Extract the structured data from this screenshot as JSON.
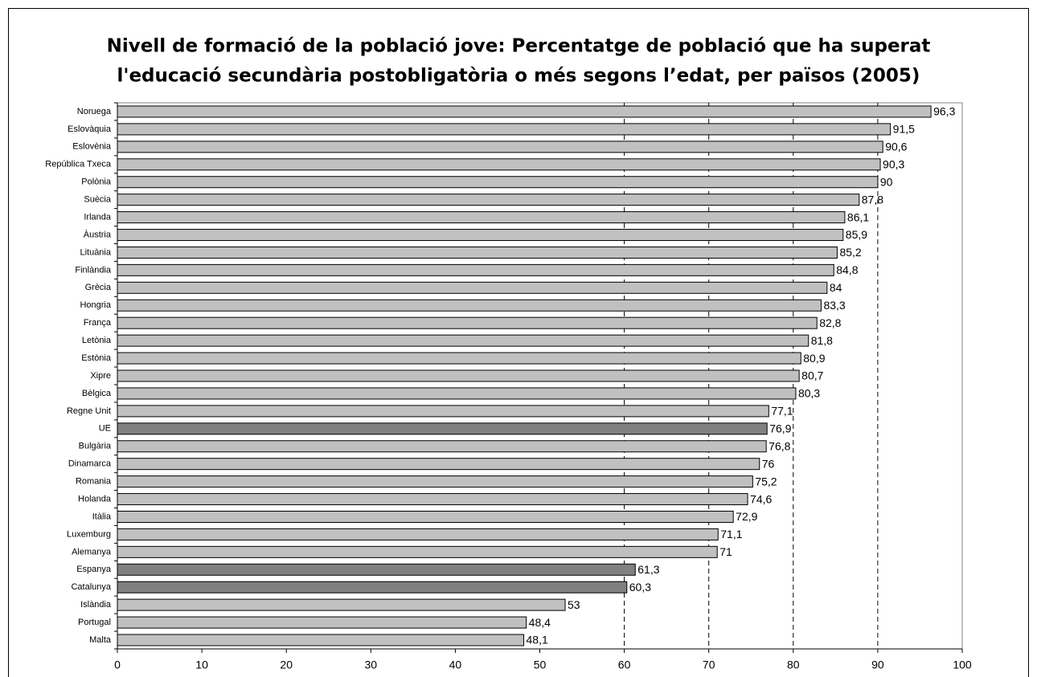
{
  "chart_data": {
    "type": "barh",
    "title": "Nivell de formació de la població jove: Percentatge de població que ha superat l'educació secundària postobligatòria o més segons l’edat, per països (2005)",
    "title_lines": [
      "Nivell de formació de la població jove: Percentatge de població que ha superat",
      "l'educació secundària postobligatòria o més segons l’edat, per països (2005)"
    ],
    "categories": [
      "Noruega",
      "Eslovàquia",
      "Eslovènia",
      "República Txeca",
      "Polònia",
      "Suècia",
      "Irlanda",
      "Àustria",
      "Lituània",
      "Finlàndia",
      "Grècia",
      "Hongria",
      "França",
      "Letònia",
      "Estònia",
      "Xipre",
      "Bèlgica",
      "Regne Unit",
      "UE",
      "Bulgària",
      "Dinamarca",
      "Romania",
      "Holanda",
      "Itàlia",
      "Luxemburg",
      "Alemanya",
      "Espanya",
      "Catalunya",
      "Islàndia",
      "Portugal",
      "Malta"
    ],
    "values": [
      96.3,
      91.5,
      90.6,
      90.3,
      90,
      87.8,
      86.1,
      85.9,
      85.2,
      84.8,
      84,
      83.3,
      82.8,
      81.8,
      80.9,
      80.7,
      80.3,
      77.1,
      76.9,
      76.8,
      76,
      75.2,
      74.6,
      72.9,
      71.1,
      71,
      61.3,
      60.3,
      53,
      48.4,
      48.1
    ],
    "value_labels": [
      "96,3",
      "91,5",
      "90,6",
      "90,3",
      "90",
      "87,8",
      "86,1",
      "85,9",
      "85,2",
      "84,8",
      "84",
      "83,3",
      "82,8",
      "81,8",
      "80,9",
      "80,7",
      "80,3",
      "77,1",
      "76,9",
      "76,8",
      "76",
      "75,2",
      "74,6",
      "72,9",
      "71,1",
      "71",
      "61,3",
      "60,3",
      "53",
      "48,4",
      "48,1"
    ],
    "colors": [
      "#c0c0c0",
      "#c0c0c0",
      "#c0c0c0",
      "#c0c0c0",
      "#c0c0c0",
      "#c0c0c0",
      "#c0c0c0",
      "#c0c0c0",
      "#c0c0c0",
      "#c0c0c0",
      "#c0c0c0",
      "#c0c0c0",
      "#c0c0c0",
      "#c0c0c0",
      "#c0c0c0",
      "#c0c0c0",
      "#c0c0c0",
      "#c0c0c0",
      "#808080",
      "#c0c0c0",
      "#c0c0c0",
      "#c0c0c0",
      "#c0c0c0",
      "#c0c0c0",
      "#c0c0c0",
      "#c0c0c0",
      "#808080",
      "#808080",
      "#c0c0c0",
      "#c0c0c0",
      "#c0c0c0"
    ],
    "xlim": [
      0,
      100
    ],
    "xticks": [
      0,
      10,
      20,
      30,
      40,
      50,
      60,
      70,
      80,
      90,
      100
    ],
    "grid_lines": [
      60,
      70,
      80,
      90
    ]
  }
}
